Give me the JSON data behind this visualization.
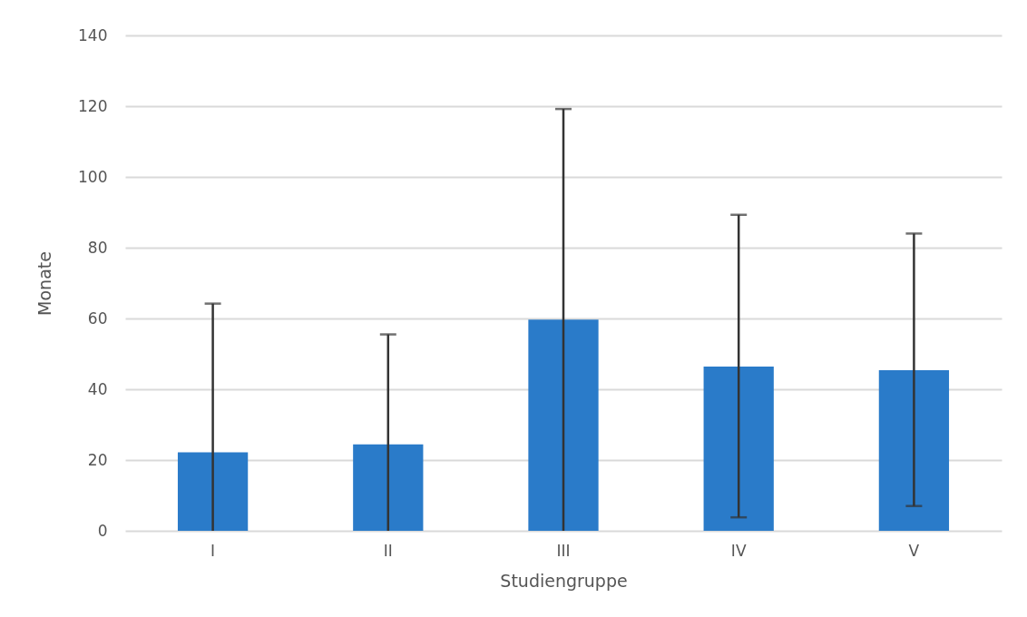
{
  "chart_data": {
    "type": "bar",
    "xlabel": "Studiengruppe",
    "ylabel": "Monate",
    "categories": [
      "I",
      "II",
      "III",
      "IV",
      "V"
    ],
    "series": [
      {
        "color": "#2a7bc9",
        "values": [
          22.2,
          24.4,
          59.7,
          46.4,
          45.4
        ],
        "errors": [
          [
            0,
            64.2
          ],
          [
            0,
            55.5
          ],
          [
            0,
            119.2
          ],
          [
            3.8,
            89.3
          ],
          [
            7.0,
            84.0
          ]
        ]
      }
    ],
    "ylim": [
      0,
      140
    ],
    "yticks": [
      0,
      20,
      40,
      60,
      80,
      100,
      120,
      140
    ],
    "grid": "y"
  }
}
